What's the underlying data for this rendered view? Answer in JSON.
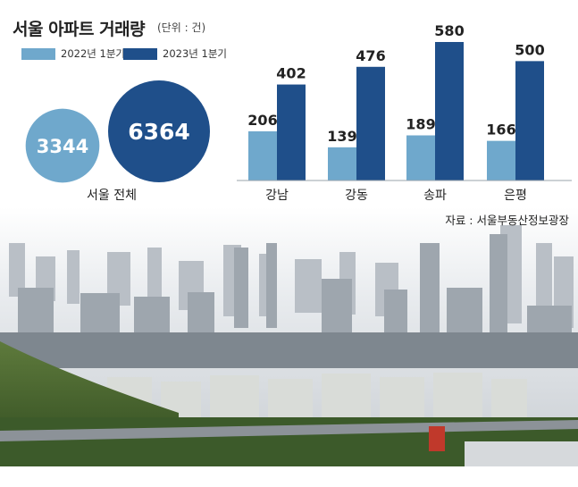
{
  "header": {
    "title": "서울 아파트 거래량",
    "unit": "(단위 : 건)"
  },
  "legend": [
    {
      "label": "2022년 1분기",
      "color": "#6fa8cc"
    },
    {
      "label": "2023년 1분기",
      "color": "#1f4f8a"
    }
  ],
  "source": "자료 : 서울부동산정보광장",
  "colors": {
    "series_2022": "#6fa8cc",
    "series_2023": "#1f4f8a"
  },
  "chart_data": [
    {
      "type": "bubble",
      "categories": [
        "서울 전체"
      ],
      "series": [
        {
          "name": "2022년 1분기",
          "values": [
            3344
          ]
        },
        {
          "name": "2023년 1분기",
          "values": [
            6364
          ]
        }
      ],
      "xlabel": "서울 전체"
    },
    {
      "type": "bar",
      "categories": [
        "강남",
        "강동",
        "송파",
        "은평"
      ],
      "series": [
        {
          "name": "2022년 1분기",
          "values": [
            206,
            139,
            189,
            166
          ]
        },
        {
          "name": "2023년 1분기",
          "values": [
            402,
            476,
            580,
            500
          ]
        }
      ],
      "ylim": [
        0,
        580
      ]
    }
  ]
}
